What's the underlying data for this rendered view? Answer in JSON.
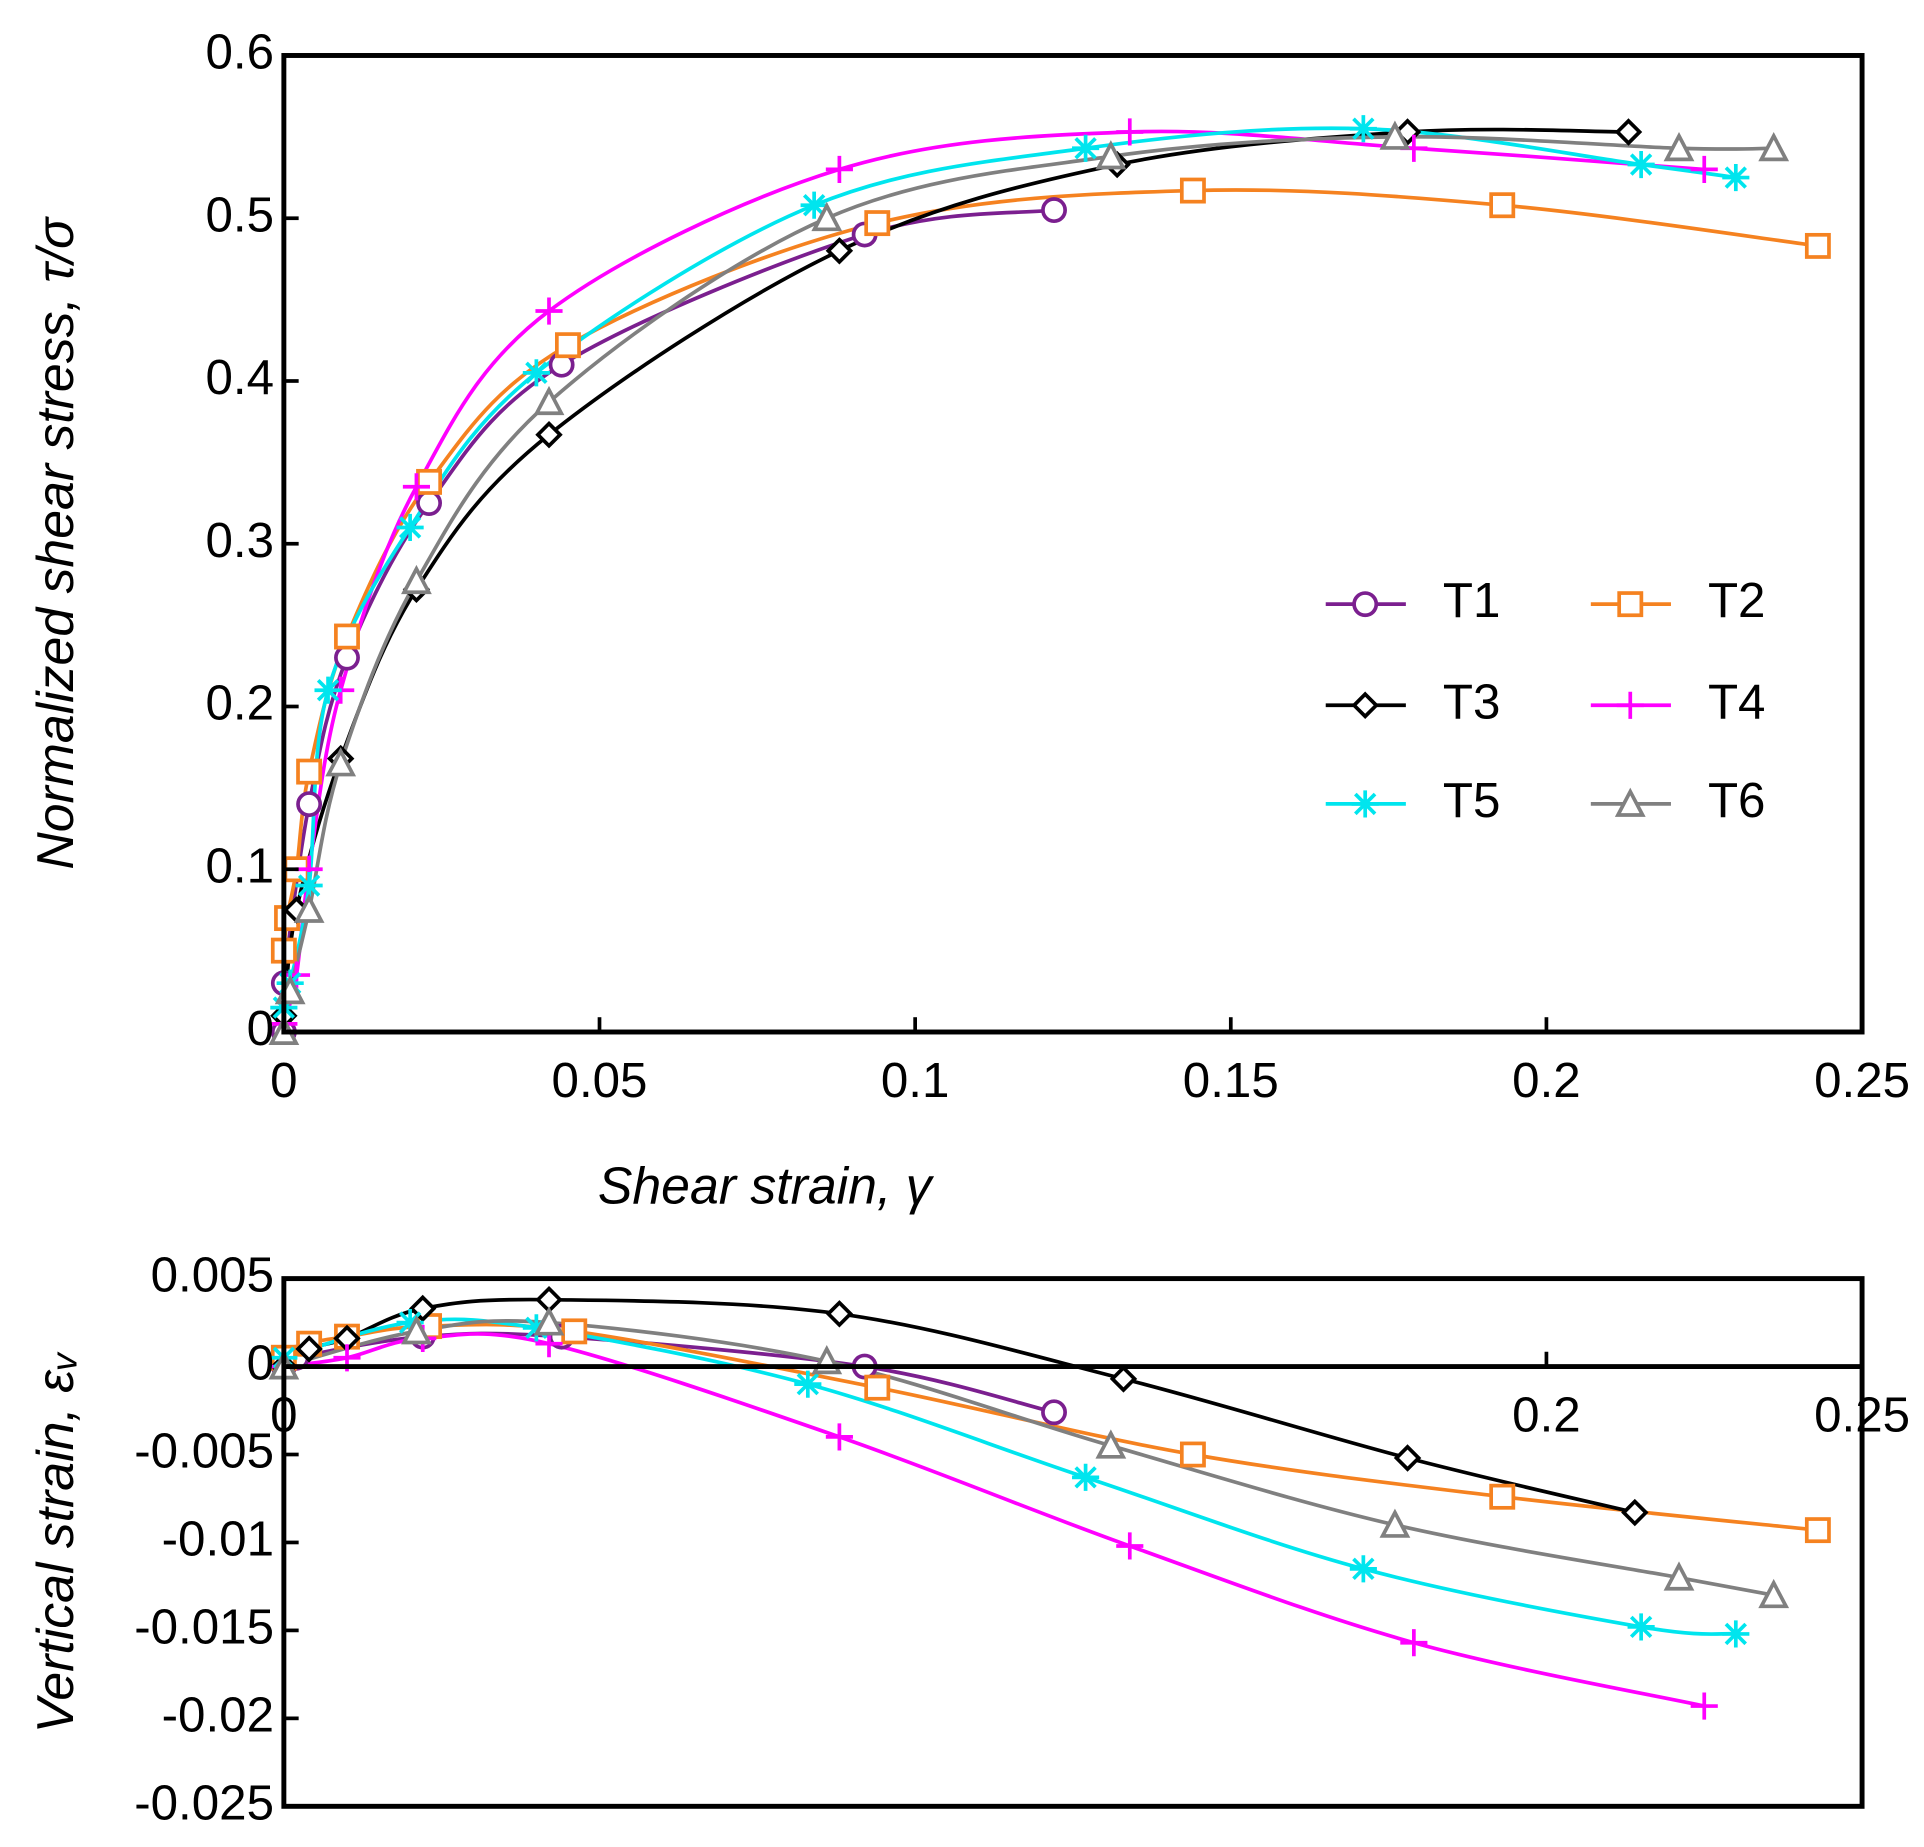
{
  "chart_data": [
    {
      "type": "line",
      "xlabel": "Shear strain, γ",
      "ylabel": "Normalized shear stress, τ/σ",
      "xlim": [
        0,
        0.25
      ],
      "ylim": [
        0,
        0.6
      ],
      "xticks": [
        0,
        0.05,
        0.1,
        0.15,
        0.2,
        0.25
      ],
      "yticks": [
        0,
        0.1,
        0.2,
        0.3,
        0.4,
        0.5,
        0.6
      ],
      "legend": "center right",
      "series": [
        {
          "name": "T1",
          "color": "#7b1f8f",
          "marker": "circle",
          "x": [
            0,
            0,
            0.004,
            0.01,
            0.023,
            0.044,
            0.092,
            0.122
          ],
          "values": [
            0,
            0.03,
            0.14,
            0.23,
            0.325,
            0.41,
            0.49,
            0.505
          ]
        },
        {
          "name": "T2",
          "color": "#f58220",
          "marker": "square",
          "x": [
            0,
            0.0005,
            0.002,
            0.004,
            0.01,
            0.023,
            0.045,
            0.094,
            0.144,
            0.193,
            0.243
          ],
          "values": [
            0.05,
            0.07,
            0.1,
            0.16,
            0.243,
            0.338,
            0.422,
            0.497,
            0.517,
            0.508,
            0.483
          ]
        },
        {
          "name": "T3",
          "color": "#000000",
          "marker": "diamond",
          "x": [
            0,
            0.002,
            0.009,
            0.021,
            0.042,
            0.088,
            0.132,
            0.178,
            0.213
          ],
          "values": [
            0.01,
            0.075,
            0.168,
            0.272,
            0.367,
            0.48,
            0.533,
            0.553,
            0.553
          ]
        },
        {
          "name": "T4",
          "color": "#ff00ff",
          "marker": "plus",
          "x": [
            0,
            0.002,
            0.004,
            0.009,
            0.021,
            0.042,
            0.088,
            0.134,
            0.179,
            0.225
          ],
          "values": [
            0.005,
            0.035,
            0.1,
            0.21,
            0.335,
            0.443,
            0.53,
            0.553,
            0.543,
            0.53
          ]
        },
        {
          "name": "T5",
          "color": "#00e5ee",
          "marker": "asterisk",
          "x": [
            0,
            0.001,
            0.004,
            0.007,
            0.02,
            0.04,
            0.084,
            0.127,
            0.171,
            0.215,
            0.23
          ],
          "values": [
            0.015,
            0.03,
            0.09,
            0.21,
            0.31,
            0.405,
            0.508,
            0.543,
            0.555,
            0.533,
            0.525
          ]
        },
        {
          "name": "T6",
          "color": "#808080",
          "marker": "triangle",
          "x": [
            0,
            0.001,
            0.004,
            0.009,
            0.021,
            0.042,
            0.086,
            0.131,
            0.176,
            0.221,
            0.236
          ],
          "values": [
            0,
            0.025,
            0.075,
            0.165,
            0.277,
            0.387,
            0.5,
            0.538,
            0.55,
            0.543,
            0.543
          ]
        }
      ]
    },
    {
      "type": "line",
      "ylabel": "Vertical strain, εᵥ",
      "xlim": [
        0,
        0.25
      ],
      "ylim": [
        -0.025,
        0.005
      ],
      "xticks": [
        0,
        0.2,
        0.25
      ],
      "yticks": [
        0.005,
        0,
        -0.005,
        -0.01,
        -0.015,
        -0.02,
        -0.025
      ],
      "series": [
        {
          "color": "#7b1f8f",
          "marker": "circle",
          "x": [
            0,
            0.002,
            0.022,
            0.044,
            0.092,
            0.122
          ],
          "values": [
            0,
            0.0005,
            0.0017,
            0.0017,
            0,
            -0.0026
          ]
        },
        {
          "color": "#f58220",
          "marker": "square",
          "x": [
            0,
            0.004,
            0.01,
            0.023,
            0.046,
            0.094,
            0.144,
            0.193,
            0.243
          ],
          "values": [
            0.0005,
            0.0013,
            0.0017,
            0.0023,
            0.002,
            -0.0012,
            -0.005,
            -0.0074,
            -0.0093
          ]
        },
        {
          "color": "#000000",
          "marker": "diamond",
          "x": [
            0,
            0.004,
            0.01,
            0.022,
            0.042,
            0.088,
            0.133,
            0.178,
            0.214
          ],
          "values": [
            0,
            0.001,
            0.0016,
            0.0033,
            0.0038,
            0.003,
            -0.0007,
            -0.0052,
            -0.0083
          ]
        },
        {
          "color": "#ff00ff",
          "marker": "plus",
          "x": [
            0,
            0.01,
            0.022,
            0.042,
            0.088,
            0.134,
            0.179,
            0.225
          ],
          "values": [
            0,
            0.0005,
            0.0016,
            0.0013,
            -0.004,
            -0.0102,
            -0.0157,
            -0.0193
          ]
        },
        {
          "color": "#00e5ee",
          "marker": "asterisk",
          "x": [
            0,
            0.02,
            0.04,
            0.083,
            0.127,
            0.171,
            0.215,
            0.23
          ],
          "values": [
            0.0005,
            0.0025,
            0.0022,
            -0.001,
            -0.0063,
            -0.0115,
            -0.0148,
            -0.0152
          ]
        },
        {
          "color": "#808080",
          "marker": "triangle",
          "x": [
            0,
            0.021,
            0.042,
            0.086,
            0.131,
            0.176,
            0.221,
            0.236
          ],
          "values": [
            0,
            0.002,
            0.0025,
            0.0003,
            -0.0045,
            -0.009,
            -0.012,
            -0.013
          ]
        }
      ]
    }
  ]
}
